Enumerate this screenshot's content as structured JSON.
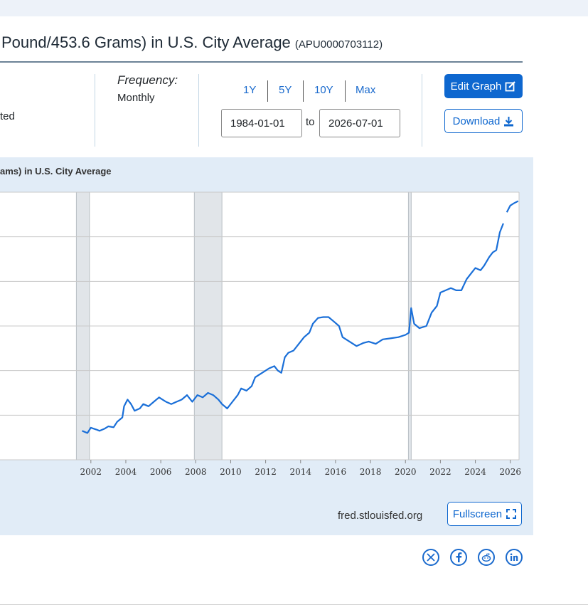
{
  "header": {
    "title_visible": "Pound/453.6 Grams) in U.S. City Average",
    "series_id": "(APU0000703112)"
  },
  "controls": {
    "seasonal_fragment": "ted",
    "frequency_label": "Frequency:",
    "frequency_value": "Monthly",
    "range_buttons": [
      "1Y",
      "5Y",
      "10Y",
      "Max"
    ],
    "start_date": "1984-01-01",
    "to_label": "to",
    "end_date": "2026-07-01",
    "edit_graph_label": "Edit Graph",
    "download_label": "Download"
  },
  "chart_data": {
    "type": "line",
    "title": "ams) in U.S. City Average",
    "xlabel": "",
    "ylabel": "",
    "x_ticks": [
      "2002",
      "2004",
      "2006",
      "2008",
      "2010",
      "2012",
      "2014",
      "2016",
      "2018",
      "2020",
      "2022",
      "2024",
      "2026"
    ],
    "xlim": [
      1996.8,
      2026.5
    ],
    "ylim": [
      0,
      6
    ],
    "grid": true,
    "recession_shading": [
      [
        2001.17,
        2001.92
      ],
      [
        2007.92,
        2009.5
      ],
      [
        2020.17,
        2020.33
      ]
    ],
    "series": [
      {
        "color": "#1a6fd8",
        "points": [
          [
            2001.5,
            0.65
          ],
          [
            2001.8,
            0.6
          ],
          [
            2002.0,
            0.72
          ],
          [
            2002.3,
            0.68
          ],
          [
            2002.5,
            0.65
          ],
          [
            2002.8,
            0.7
          ],
          [
            2003.0,
            0.75
          ],
          [
            2003.3,
            0.73
          ],
          [
            2003.5,
            0.85
          ],
          [
            2003.8,
            0.95
          ],
          [
            2003.9,
            1.2
          ],
          [
            2004.1,
            1.35
          ],
          [
            2004.3,
            1.25
          ],
          [
            2004.5,
            1.1
          ],
          [
            2004.8,
            1.15
          ],
          [
            2005.0,
            1.25
          ],
          [
            2005.3,
            1.2
          ],
          [
            2005.6,
            1.3
          ],
          [
            2005.9,
            1.4
          ],
          [
            2006.1,
            1.35
          ],
          [
            2006.3,
            1.3
          ],
          [
            2006.6,
            1.25
          ],
          [
            2006.9,
            1.3
          ],
          [
            2007.2,
            1.35
          ],
          [
            2007.5,
            1.45
          ],
          [
            2007.8,
            1.3
          ],
          [
            2008.1,
            1.45
          ],
          [
            2008.4,
            1.4
          ],
          [
            2008.7,
            1.5
          ],
          [
            2009.0,
            1.45
          ],
          [
            2009.3,
            1.35
          ],
          [
            2009.5,
            1.25
          ],
          [
            2009.8,
            1.15
          ],
          [
            2010.1,
            1.3
          ],
          [
            2010.4,
            1.45
          ],
          [
            2010.6,
            1.6
          ],
          [
            2010.9,
            1.55
          ],
          [
            2011.2,
            1.65
          ],
          [
            2011.4,
            1.85
          ],
          [
            2011.8,
            1.95
          ],
          [
            2012.2,
            2.05
          ],
          [
            2012.5,
            2.1
          ],
          [
            2012.7,
            2.0
          ],
          [
            2012.9,
            1.95
          ],
          [
            2013.1,
            2.3
          ],
          [
            2013.3,
            2.4
          ],
          [
            2013.6,
            2.45
          ],
          [
            2013.9,
            2.6
          ],
          [
            2014.2,
            2.75
          ],
          [
            2014.5,
            2.85
          ],
          [
            2014.7,
            3.05
          ],
          [
            2015.0,
            3.18
          ],
          [
            2015.3,
            3.2
          ],
          [
            2015.6,
            3.2
          ],
          [
            2015.9,
            3.1
          ],
          [
            2016.2,
            3.0
          ],
          [
            2016.4,
            2.75
          ],
          [
            2016.8,
            2.65
          ],
          [
            2017.2,
            2.55
          ],
          [
            2017.6,
            2.62
          ],
          [
            2017.9,
            2.65
          ],
          [
            2018.3,
            2.6
          ],
          [
            2018.7,
            2.7
          ],
          [
            2019.1,
            2.72
          ],
          [
            2019.6,
            2.75
          ],
          [
            2020.0,
            2.8
          ],
          [
            2020.2,
            2.85
          ],
          [
            2020.33,
            3.4
          ],
          [
            2020.5,
            3.05
          ],
          [
            2020.8,
            2.95
          ],
          [
            2021.2,
            3.0
          ],
          [
            2021.5,
            3.3
          ],
          [
            2021.8,
            3.45
          ],
          [
            2022.0,
            3.75
          ],
          [
            2022.3,
            3.8
          ],
          [
            2022.6,
            3.85
          ],
          [
            2022.9,
            3.8
          ],
          [
            2023.2,
            3.8
          ],
          [
            2023.5,
            4.05
          ],
          [
            2023.8,
            4.2
          ],
          [
            2024.0,
            4.3
          ],
          [
            2024.3,
            4.25
          ],
          [
            2024.5,
            4.35
          ],
          [
            2024.8,
            4.55
          ],
          [
            2025.0,
            4.65
          ],
          [
            2025.2,
            4.7
          ],
          [
            2025.4,
            5.1
          ],
          [
            2025.6,
            5.3
          ]
        ]
      },
      {
        "color": "#1a6fd8",
        "points": [
          [
            2025.8,
            5.55
          ],
          [
            2026.0,
            5.7
          ],
          [
            2026.2,
            5.75
          ],
          [
            2026.45,
            5.8
          ]
        ]
      }
    ]
  },
  "footer": {
    "source_label": "fred.stlouisfed.org",
    "fullscreen_label": "Fullscreen"
  },
  "share": [
    "X",
    "Facebook",
    "Reddit",
    "LinkedIn"
  ],
  "colors": {
    "accent": "#0e67cf",
    "line": "#1a6fd8",
    "panel": "#e1ecf7",
    "recession": "#e1e5e9"
  }
}
